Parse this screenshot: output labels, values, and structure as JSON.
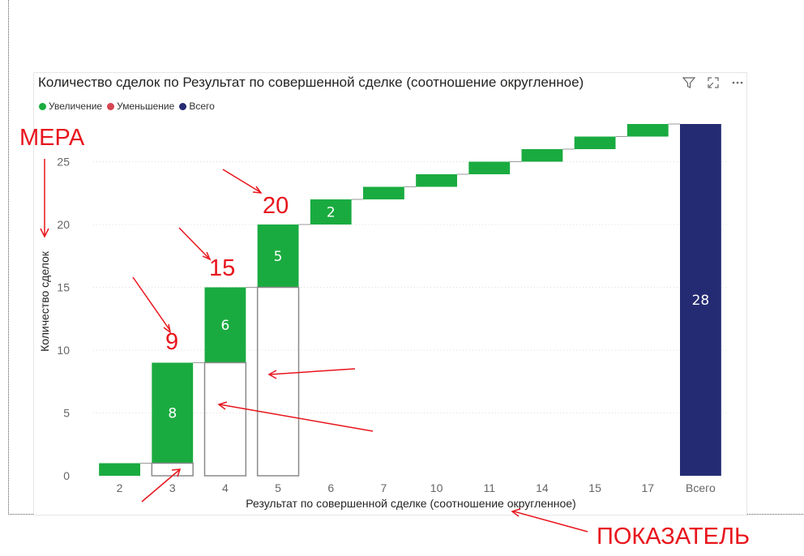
{
  "chart_data": {
    "type": "waterfall",
    "title": "Количество сделок по Результат по совершенной сделке (соотношение округленное)",
    "xlabel": "Результат по совершенной сделке (соотношение округленное)",
    "ylabel": "Количество сделок",
    "categories": [
      "2",
      "3",
      "4",
      "5",
      "6",
      "7",
      "10",
      "11",
      "14",
      "15",
      "17"
    ],
    "increments": [
      1,
      8,
      6,
      5,
      2,
      1,
      1,
      1,
      1,
      1,
      1
    ],
    "total_label": "Всего",
    "total": 28,
    "data_labels": [
      "",
      "8",
      "6",
      "5",
      "2",
      "",
      "",
      "",
      "",
      "",
      "",
      "28"
    ],
    "yticks": [
      "0",
      "5",
      "10",
      "15",
      "20",
      "25"
    ],
    "ylim": [
      0,
      28
    ],
    "grid": true,
    "legend_position": "top-left",
    "legend": [
      {
        "label": "Увеличение",
        "color": "#1aab40"
      },
      {
        "label": "Уменьшение",
        "color": "#d64550"
      },
      {
        "label": "Всего",
        "color": "#252b73"
      }
    ],
    "colors": {
      "increase": "#1aab40",
      "total": "#252b73"
    }
  },
  "annotations": {
    "mera": "МЕРА",
    "pokazatel": "ПОКАЗАТЕЛЬ",
    "labels": [
      "9",
      "15",
      "20"
    ],
    "color": "#e8141c"
  },
  "header_icons": [
    "filter-icon",
    "focus-mode-icon",
    "more-options-icon"
  ]
}
